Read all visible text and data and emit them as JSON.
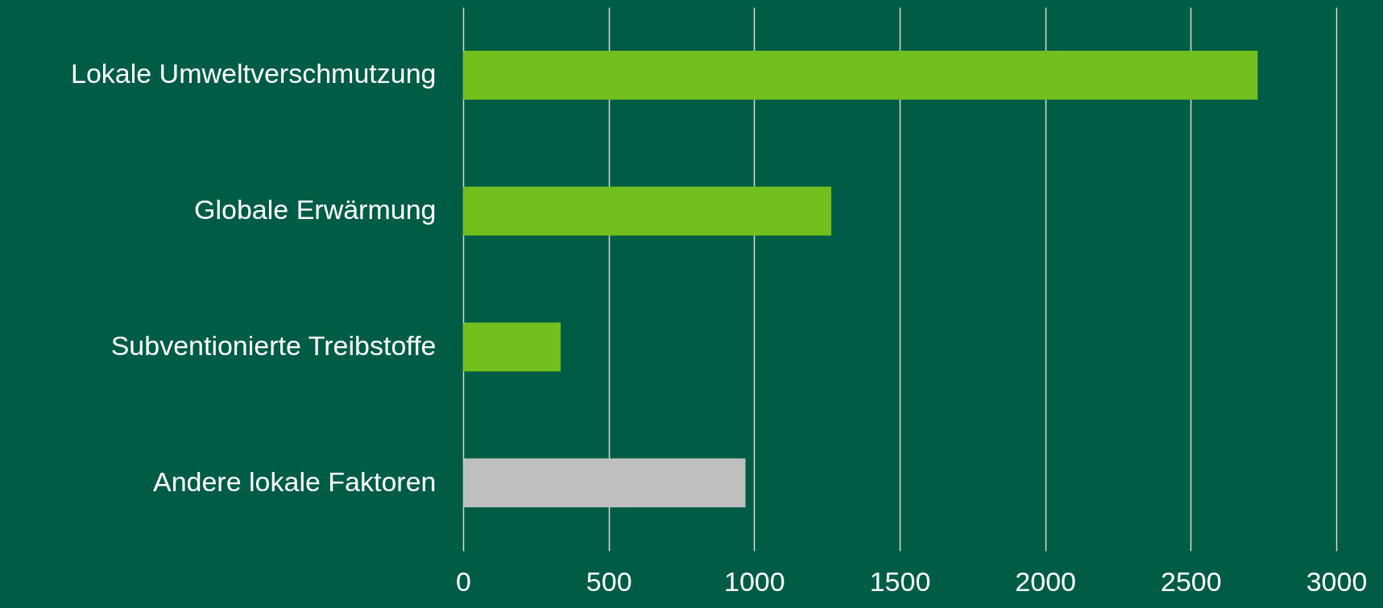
{
  "chart_data": {
    "type": "bar",
    "orientation": "horizontal",
    "categories": [
      "Lokale Umweltverschmutzung",
      "Globale Erwärmung",
      "Subventionierte Treibstoffe",
      "Andere lokale Faktoren"
    ],
    "values": [
      2730,
      1265,
      335,
      970
    ],
    "colors": [
      "#72bf1e",
      "#72bf1e",
      "#72bf1e",
      "#bfbfbf"
    ],
    "xlim": [
      0,
      3000
    ],
    "xticks": [
      0,
      500,
      1000,
      1500,
      2000,
      2500,
      3000
    ],
    "grid": true
  }
}
